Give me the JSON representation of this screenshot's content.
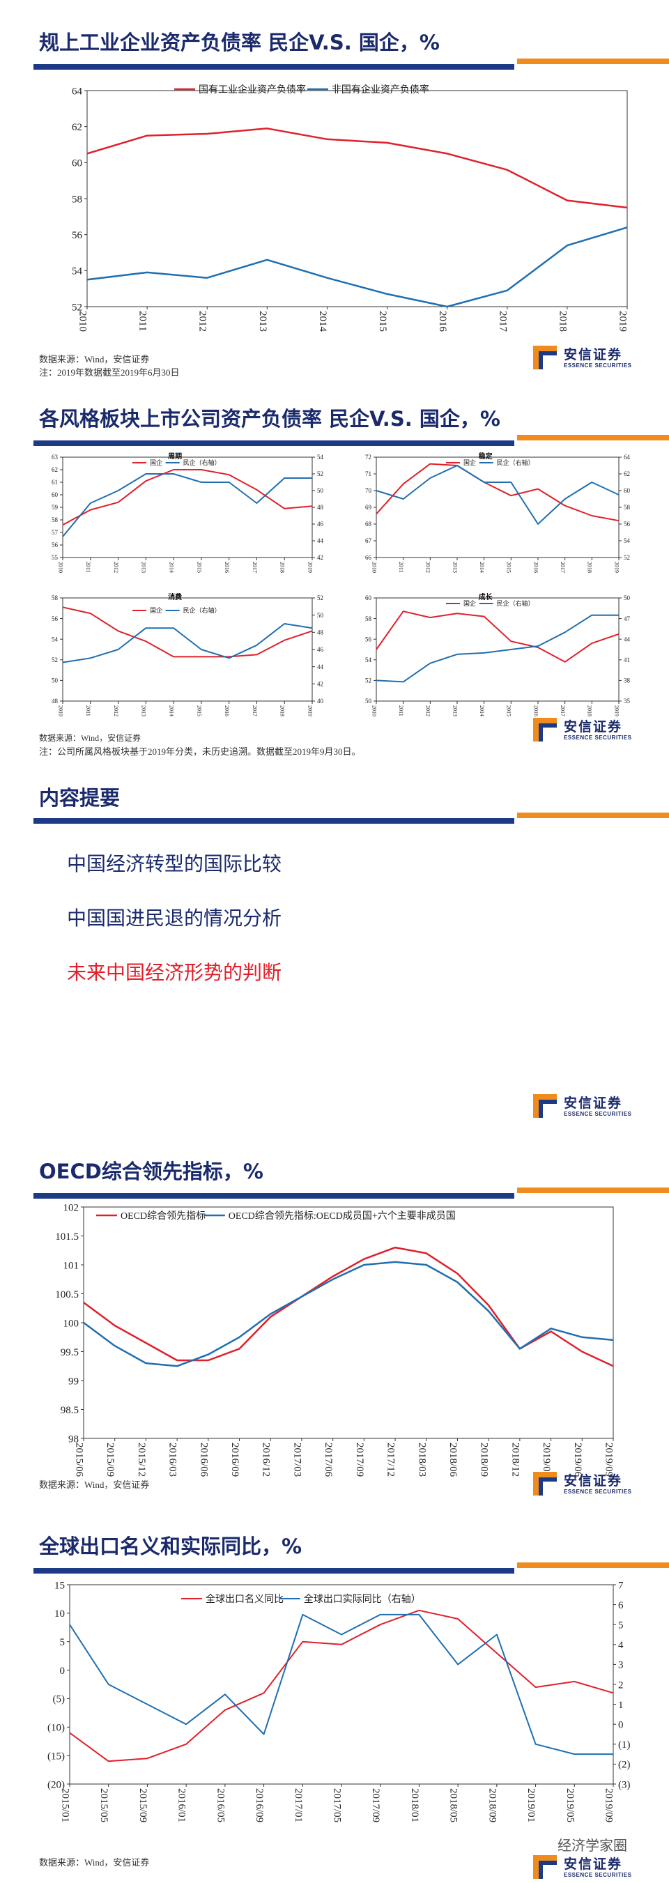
{
  "slides": {
    "s1": {
      "title": "规上工业企业资产负债率 民企V.S. 国企，%",
      "source": "数据来源：Wind，安信证券",
      "note": "注：2019年数据截至2019年6月30日"
    },
    "s2": {
      "title": "各风格板块上市公司资产负债率 民企V.S. 国企，%",
      "source": "数据来源：Wind，安信证券",
      "note": "注：公司所属风格板块基于2019年分类，未历史追溯。数据截至2019年9月30日。"
    },
    "s3": {
      "title": "内容提要",
      "items": [
        "中国经济转型的国际比较",
        "中国国进民退的情况分析",
        "未来中国经济形势的判断"
      ]
    },
    "s4": {
      "title": "OECD综合领先指标，%",
      "source": "数据来源：Wind，安信证券"
    },
    "s5": {
      "title": "全球出口名义和实际同比，%",
      "source": "数据来源：Wind，安信证券"
    }
  },
  "logo": {
    "cn": "安信证券",
    "en": "ESSENCE SECURITIES"
  },
  "watermark": "经济学家圈",
  "colors": {
    "red": "#e0202a",
    "blue": "#1f6fb0",
    "navy": "#1c3a85",
    "orange": "#f08c1e",
    "agenda_red": "#e0202a",
    "agenda_navy": "#1a2a6c"
  },
  "chart_data": [
    {
      "id": "debt-ratio",
      "type": "line",
      "categories": [
        "2010",
        "2011",
        "2012",
        "2013",
        "2014",
        "2015",
        "2016",
        "2017",
        "2018",
        "2019"
      ],
      "series": [
        {
          "name": "国有工业企业资产负债率",
          "color": "#e0202a",
          "values": [
            60.5,
            61.5,
            61.6,
            61.9,
            61.3,
            61.1,
            60.5,
            59.6,
            57.9,
            57.5
          ]
        },
        {
          "name": "非国有企业资产负债率",
          "color": "#1f6fb0",
          "values": [
            53.5,
            53.9,
            53.6,
            54.6,
            53.6,
            52.7,
            52.0,
            52.9,
            55.4,
            56.4
          ]
        }
      ],
      "ylim": [
        52,
        64
      ],
      "yticks": [
        52,
        54,
        56,
        58,
        60,
        62,
        64
      ],
      "legend": "top"
    },
    {
      "id": "style-cycle",
      "type": "line",
      "panel_title": "周期",
      "categories": [
        "2010",
        "2011",
        "2012",
        "2013",
        "2014",
        "2015",
        "2016",
        "2017",
        "2018",
        "2019"
      ],
      "series": [
        {
          "name": "国企",
          "color": "#e0202a",
          "axis": "left",
          "values": [
            57.6,
            58.8,
            59.4,
            61.1,
            62.0,
            62.0,
            61.6,
            60.4,
            58.9,
            59.1
          ]
        },
        {
          "name": "民企（右轴）",
          "color": "#1f6fb0",
          "axis": "right",
          "values": [
            44.5,
            48.5,
            50.0,
            52.0,
            52.0,
            51.0,
            51.0,
            48.5,
            51.5,
            51.5
          ]
        }
      ],
      "ylim": [
        55,
        63
      ],
      "yticks": [
        55,
        56,
        57,
        58,
        59,
        60,
        61,
        62,
        63
      ],
      "y2lim": [
        42,
        54
      ],
      "y2ticks": [
        42,
        44,
        46,
        48,
        50,
        52,
        54
      ]
    },
    {
      "id": "style-stable",
      "type": "line",
      "panel_title": "稳定",
      "categories": [
        "2010",
        "2011",
        "2012",
        "2013",
        "2014",
        "2015",
        "2016",
        "2017",
        "2018",
        "2019"
      ],
      "series": [
        {
          "name": "国企",
          "color": "#e0202a",
          "axis": "left",
          "values": [
            68.6,
            70.4,
            71.6,
            71.5,
            70.5,
            69.7,
            70.1,
            69.1,
            68.5,
            68.2
          ]
        },
        {
          "name": "民企（右轴）",
          "color": "#1f6fb0",
          "axis": "right",
          "values": [
            60.0,
            59.0,
            61.5,
            63.0,
            61.0,
            61.0,
            56.0,
            59.0,
            61.0,
            59.5
          ]
        }
      ],
      "ylim": [
        66,
        72
      ],
      "yticks": [
        66,
        67,
        68,
        69,
        70,
        71,
        72
      ],
      "y2lim": [
        52,
        64
      ],
      "y2ticks": [
        52,
        54,
        56,
        58,
        60,
        62,
        64
      ]
    },
    {
      "id": "style-consumer",
      "type": "line",
      "panel_title": "消费",
      "categories": [
        "2010",
        "2011",
        "2012",
        "2013",
        "2014",
        "2015",
        "2016",
        "2017",
        "2018",
        "2019"
      ],
      "series": [
        {
          "name": "国企",
          "color": "#e0202a",
          "axis": "left",
          "values": [
            57.1,
            56.5,
            54.8,
            53.8,
            52.3,
            52.3,
            52.3,
            52.5,
            53.9,
            54.8
          ]
        },
        {
          "name": "民企（右轴）",
          "color": "#1f6fb0",
          "axis": "right",
          "values": [
            44.5,
            45.0,
            46.0,
            48.5,
            48.5,
            46.0,
            45.0,
            46.5,
            49.0,
            48.5
          ]
        }
      ],
      "ylim": [
        48,
        58
      ],
      "yticks": [
        48,
        50,
        52,
        54,
        56,
        58
      ],
      "y2lim": [
        40,
        52
      ],
      "y2ticks": [
        40,
        42,
        44,
        46,
        48,
        50,
        52
      ]
    },
    {
      "id": "style-growth",
      "type": "line",
      "panel_title": "成长",
      "categories": [
        "2010",
        "2011",
        "2012",
        "2013",
        "2014",
        "2015",
        "2016",
        "2017",
        "2018",
        "2019"
      ],
      "series": [
        {
          "name": "国企",
          "color": "#e0202a",
          "axis": "left",
          "values": [
            55.0,
            58.7,
            58.1,
            58.5,
            58.2,
            55.8,
            55.2,
            53.8,
            55.6,
            56.5
          ]
        },
        {
          "name": "民企（右轴）",
          "color": "#1f6fb0",
          "axis": "right",
          "values": [
            38.0,
            37.8,
            40.5,
            41.8,
            42.0,
            42.5,
            43.0,
            45.0,
            47.5,
            47.5
          ]
        }
      ],
      "ylim": [
        50,
        60
      ],
      "yticks": [
        50,
        52,
        54,
        56,
        58,
        60
      ],
      "y2lim": [
        35,
        50
      ],
      "y2ticks": [
        35,
        38,
        41,
        44,
        47,
        50
      ]
    },
    {
      "id": "oecd",
      "type": "line",
      "categories": [
        "2015/06",
        "2015/09",
        "2015/12",
        "2016/03",
        "2016/06",
        "2016/09",
        "2016/12",
        "2017/03",
        "2017/06",
        "2017/09",
        "2017/12",
        "2018/03",
        "2018/06",
        "2018/09",
        "2018/12",
        "2019/03",
        "2019/06",
        "2019/09"
      ],
      "series": [
        {
          "name": "OECD综合领先指标",
          "color": "#e0202a",
          "values": [
            100.35,
            99.95,
            99.65,
            99.35,
            99.35,
            99.55,
            100.1,
            100.45,
            100.8,
            101.1,
            101.3,
            101.2,
            100.85,
            100.3,
            99.55,
            99.85,
            99.5,
            99.25
          ]
        },
        {
          "name": "OECD综合领先指标:OECD成员国+六个主要非成员国",
          "color": "#1f6fb0",
          "values": [
            100.0,
            99.6,
            99.3,
            99.25,
            99.45,
            99.75,
            100.15,
            100.45,
            100.75,
            101.0,
            101.05,
            101.0,
            100.7,
            100.2,
            99.55,
            99.9,
            99.75,
            99.7
          ]
        }
      ],
      "ylim": [
        98,
        102
      ],
      "yticks": [
        98,
        98.5,
        99,
        99.5,
        100,
        100.5,
        101,
        101.5,
        102
      ],
      "legend": "top"
    },
    {
      "id": "global-export",
      "type": "line",
      "categories": [
        "2015/01",
        "2015/05",
        "2015/09",
        "2016/01",
        "2016/05",
        "2016/09",
        "2017/01",
        "2017/05",
        "2017/09",
        "2018/01",
        "2018/05",
        "2018/09",
        "2019/01",
        "2019/05",
        "2019/09"
      ],
      "series": [
        {
          "name": "全球出口名义同比",
          "color": "#e0202a",
          "axis": "left",
          "values": [
            -11,
            -16,
            -15.5,
            -13,
            -7,
            -4,
            5,
            4.5,
            8,
            10.5,
            9,
            3,
            -3,
            -2,
            -4
          ]
        },
        {
          "name": "全球出口实际同比（右轴）",
          "color": "#1f6fb0",
          "axis": "right",
          "values": [
            5,
            2,
            1,
            0,
            1.5,
            -0.5,
            5.5,
            4.5,
            5.5,
            5.5,
            3,
            4.5,
            -1,
            -1.5,
            -1.5
          ]
        }
      ],
      "ylim": [
        -20,
        15
      ],
      "yticks": [
        15,
        10,
        5,
        0,
        -5,
        -10,
        -15,
        -20
      ],
      "yticklabels": [
        "15",
        "10",
        "5",
        "0",
        "(5)",
        "(10)",
        "(15)",
        "(20)"
      ],
      "y2lim": [
        -3,
        7
      ],
      "y2ticks": [
        7,
        6,
        5,
        4,
        3,
        2,
        1,
        0,
        -1,
        -2,
        -3
      ],
      "y2ticklabels": [
        "7",
        "6",
        "5",
        "4",
        "3",
        "2",
        "1",
        "0",
        "(1)",
        "(2)",
        "(3)"
      ],
      "legend": "top"
    }
  ]
}
